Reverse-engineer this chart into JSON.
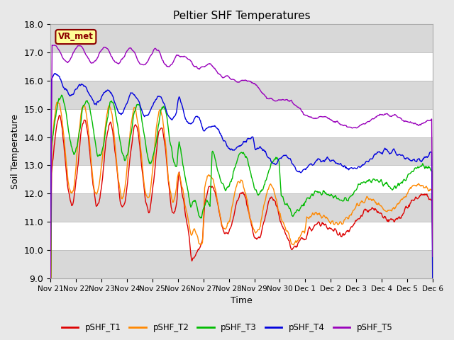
{
  "title": "Peltier SHF Temperatures",
  "xlabel": "Time",
  "ylabel": "Soil Temperature",
  "ylim": [
    9.0,
    18.0
  ],
  "yticks": [
    9.0,
    10.0,
    11.0,
    12.0,
    13.0,
    14.0,
    15.0,
    16.0,
    17.0,
    18.0
  ],
  "legend_labels": [
    "pSHF_T1",
    "pSHF_T2",
    "pSHF_T3",
    "pSHF_T4",
    "pSHF_T5"
  ],
  "line_colors": [
    "#dd0000",
    "#ff8800",
    "#00bb00",
    "#0000dd",
    "#9900bb"
  ],
  "annotation_text": "VR_met",
  "annotation_color": "#8b0000",
  "annotation_bg": "#ffff99",
  "fig_bg": "#e8e8e8",
  "plot_bg": "#ffffff",
  "band_color": "#d8d8d8",
  "xtick_labels": [
    "Nov 21",
    "Nov 22",
    "Nov 23",
    "Nov 24",
    "Nov 25",
    "Nov 26",
    "Nov 27",
    "Nov 28",
    "Nov 29",
    "Nov 30",
    "Dec 1",
    "Dec 2",
    "Dec 3",
    "Dec 4",
    "Dec 5",
    "Dec 6"
  ],
  "n_points": 720
}
